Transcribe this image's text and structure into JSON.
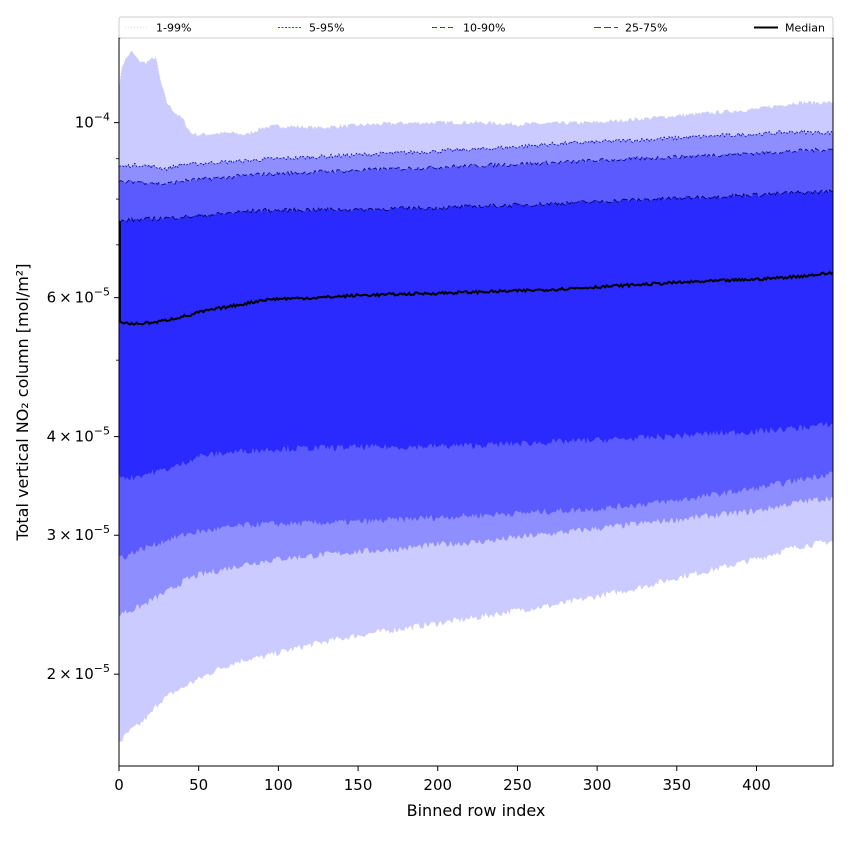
{
  "chart_data": {
    "type": "area",
    "xlabel": "Binned row index",
    "ylabel": "Total vertical NO₂ column [mol/m²]",
    "y_scale": "log",
    "xlim": [
      0,
      448
    ],
    "ylim": [
      1.53e-05,
      0.000128
    ],
    "x_ticks": [
      0,
      50,
      100,
      150,
      200,
      250,
      300,
      350,
      400
    ],
    "x_tick_labels": [
      "0",
      "50",
      "100",
      "150",
      "200",
      "250",
      "300",
      "350",
      "400"
    ],
    "y_ticks": [
      0.0001,
      6e-05,
      4e-05,
      3e-05,
      2e-05
    ],
    "y_tick_mantissa": [
      "",
      "6",
      "4",
      "3",
      "2"
    ],
    "y_tick_times": "×",
    "y_tick_base": "10",
    "y_tick_exponents": [
      "−4",
      "−5",
      "−5",
      "−5",
      "−5"
    ],
    "legend_position": "top",
    "x": [
      0,
      2,
      5,
      8,
      12,
      16,
      20,
      23,
      26,
      30,
      35,
      40,
      45,
      50,
      60,
      70,
      80,
      90,
      100,
      125,
      150,
      175,
      200,
      225,
      250,
      275,
      300,
      325,
      350,
      375,
      400,
      425,
      448
    ],
    "series": [
      {
        "name": "1-99%",
        "fill": "#cccbff",
        "edge": "#d6d6d6",
        "dash": "1,2",
        "upper": [
          0.00011,
          0.000118,
          0.000121,
          0.000123,
          0.00012,
          0.000119,
          0.00012,
          0.000121,
          0.000113,
          0.000106,
          0.000103,
          0.000101,
          9.7e-05,
          9.65e-05,
          9.68e-05,
          9.7e-05,
          9.65e-05,
          9.85e-05,
          9.9e-05,
          9.85e-05,
          9.92e-05,
          9.98e-05,
          0.0001,
          0.0001,
          9.95e-05,
          9.98e-05,
          0.0001,
          0.000101,
          0.000102,
          0.000103,
          0.000104,
          0.000106,
          0.000106
        ],
        "lower": [
          1.65e-05,
          1.65e-05,
          1.68e-05,
          1.7e-05,
          1.72e-05,
          1.75e-05,
          1.78e-05,
          1.82e-05,
          1.85e-05,
          1.87e-05,
          1.9e-05,
          1.92e-05,
          1.95e-05,
          1.97e-05,
          2.02e-05,
          2.06e-05,
          2.09e-05,
          2.1e-05,
          2.13e-05,
          2.19e-05,
          2.24e-05,
          2.28e-05,
          2.32e-05,
          2.36e-05,
          2.41e-05,
          2.45e-05,
          2.51e-05,
          2.57e-05,
          2.65e-05,
          2.72e-05,
          2.8e-05,
          2.9e-05,
          2.95e-05
        ]
      },
      {
        "name": "5-95%",
        "fill": "#8e8eff",
        "edge": "#0000b3",
        "dash": "2,1.5",
        "upper": [
          8.8e-05,
          8.8e-05,
          8.8e-05,
          8.83e-05,
          8.83e-05,
          8.82e-05,
          8.8e-05,
          8.78e-05,
          8.76e-05,
          8.74e-05,
          8.8e-05,
          8.85e-05,
          8.85e-05,
          8.87e-05,
          8.9e-05,
          8.92e-05,
          8.94e-05,
          8.98e-05,
          9e-05,
          9.05e-05,
          9.1e-05,
          9.15e-05,
          9.2e-05,
          9.25e-05,
          9.32e-05,
          9.4e-05,
          9.45e-05,
          9.5e-05,
          9.56e-05,
          9.62e-05,
          9.67e-05,
          9.73e-05,
          9.7e-05
        ],
        "lower": [
          2.37e-05,
          2.4e-05,
          2.4e-05,
          2.41e-05,
          2.43e-05,
          2.45e-05,
          2.48e-05,
          2.5e-05,
          2.52e-05,
          2.54e-05,
          2.58e-05,
          2.62e-05,
          2.65e-05,
          2.67e-05,
          2.7e-05,
          2.73e-05,
          2.76e-05,
          2.78e-05,
          2.8e-05,
          2.83e-05,
          2.86e-05,
          2.88e-05,
          2.92e-05,
          2.94e-05,
          2.98e-05,
          3.02e-05,
          3.06e-05,
          3.1e-05,
          3.14e-05,
          3.18e-05,
          3.22e-05,
          3.3e-05,
          3.35e-05
        ]
      },
      {
        "name": "10-90%",
        "fill": "#5a5aff",
        "edge": "#000080",
        "dash": "5,3",
        "upper": [
          8.4e-05,
          8.4e-05,
          8.4e-05,
          8.42e-05,
          8.42e-05,
          8.4e-05,
          8.4e-05,
          8.38e-05,
          8.36e-05,
          8.36e-05,
          8.4e-05,
          8.43e-05,
          8.45e-05,
          8.47e-05,
          8.5e-05,
          8.53e-05,
          8.57e-05,
          8.6e-05,
          8.62e-05,
          8.66e-05,
          8.7e-05,
          8.74e-05,
          8.78e-05,
          8.82e-05,
          8.86e-05,
          8.9e-05,
          8.95e-05,
          9e-05,
          9.05e-05,
          9.1e-05,
          9.15e-05,
          9.2e-05,
          9.25e-05
        ],
        "lower": [
          2.82e-05,
          2.82e-05,
          2.82e-05,
          2.85e-05,
          2.87e-05,
          2.89e-05,
          2.91e-05,
          2.92e-05,
          2.94e-05,
          2.96e-05,
          2.98e-05,
          3e-05,
          3.02e-05,
          3.03e-05,
          3.05e-05,
          3.07e-05,
          3.09e-05,
          3.1e-05,
          3.1e-05,
          3.11e-05,
          3.12e-05,
          3.14e-05,
          3.16e-05,
          3.18e-05,
          3.2e-05,
          3.22e-05,
          3.24e-05,
          3.28e-05,
          3.32e-05,
          3.38e-05,
          3.44e-05,
          3.52e-05,
          3.6e-05
        ]
      },
      {
        "name": "25-75%",
        "fill": "#2a2aff",
        "edge": "#000050",
        "dash": "7,3",
        "upper": [
          7.5e-05,
          7.5e-05,
          7.52e-05,
          7.53e-05,
          7.53e-05,
          7.54e-05,
          7.55e-05,
          7.56e-05,
          7.56e-05,
          7.57e-05,
          7.58e-05,
          7.6e-05,
          7.6e-05,
          7.62e-05,
          7.65e-05,
          7.68e-05,
          7.72e-05,
          7.74e-05,
          7.74e-05,
          7.76e-05,
          7.76e-05,
          7.78e-05,
          7.8e-05,
          7.83e-05,
          7.86e-05,
          7.9e-05,
          7.94e-05,
          7.98e-05,
          8.02e-05,
          8.06e-05,
          8.1e-05,
          8.15e-05,
          8.18e-05
        ],
        "lower": [
          3.57e-05,
          3.57e-05,
          3.55e-05,
          3.55e-05,
          3.57e-05,
          3.58e-05,
          3.6e-05,
          3.61e-05,
          3.62e-05,
          3.64e-05,
          3.66e-05,
          3.7e-05,
          3.74e-05,
          3.78e-05,
          3.8e-05,
          3.82e-05,
          3.84e-05,
          3.85e-05,
          3.86e-05,
          3.87e-05,
          3.88e-05,
          3.88e-05,
          3.89e-05,
          3.9e-05,
          3.92e-05,
          3.94e-05,
          3.96e-05,
          3.98e-05,
          4.01e-05,
          4.04e-05,
          4.06e-05,
          4.1e-05,
          4.15e-05
        ]
      }
    ],
    "median": {
      "name": "Median",
      "color": "#000000",
      "values": [
        5.6e-05,
        5.58e-05,
        5.57e-05,
        5.56e-05,
        5.56e-05,
        5.57e-05,
        5.58e-05,
        5.58e-05,
        5.6e-05,
        5.62e-05,
        5.65e-05,
        5.68e-05,
        5.7e-05,
        5.75e-05,
        5.8e-05,
        5.85e-05,
        5.9e-05,
        5.96e-05,
        5.98e-05,
        6e-05,
        6.04e-05,
        6.06e-05,
        6.08e-05,
        6.1e-05,
        6.12e-05,
        6.15e-05,
        6.19e-05,
        6.23e-05,
        6.27e-05,
        6.3e-05,
        6.33e-05,
        6.38e-05,
        6.45e-05
      ],
      "spike_x": 0,
      "spike_y": [
        5.6e-05,
        7.5e-05
      ]
    }
  }
}
